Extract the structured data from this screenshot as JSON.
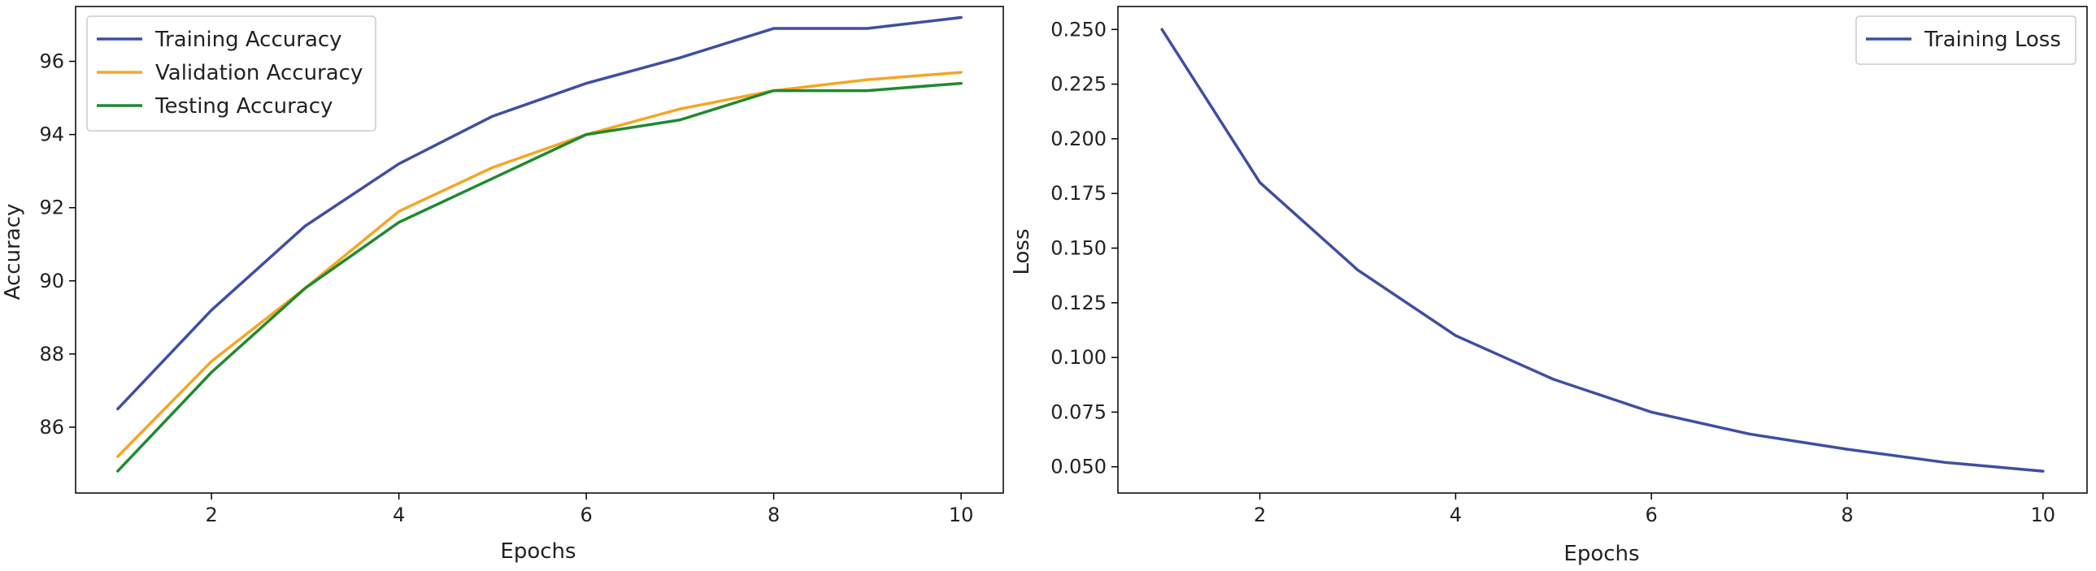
{
  "chart_data": [
    {
      "type": "line",
      "title": "",
      "xlabel": "Epochs",
      "ylabel": "Accuracy",
      "x": [
        1,
        2,
        3,
        4,
        5,
        6,
        7,
        8,
        9,
        10
      ],
      "xlim": [
        0.55,
        10.45
      ],
      "ylim": [
        84.2,
        97.5
      ],
      "xticks": [
        2,
        4,
        6,
        8,
        10
      ],
      "yticks": [
        86,
        88,
        90,
        92,
        94,
        96
      ],
      "legend": "top-left",
      "grid": false,
      "series": [
        {
          "name": "Training Accuracy",
          "color": "#3f4ea3",
          "values": [
            86.5,
            89.2,
            91.5,
            93.2,
            94.5,
            95.4,
            96.1,
            96.9,
            96.9,
            97.2
          ]
        },
        {
          "name": "Validation Accuracy",
          "color": "#f5a623",
          "values": [
            85.2,
            87.8,
            89.8,
            91.9,
            93.1,
            94.0,
            94.7,
            95.2,
            95.5,
            95.7
          ]
        },
        {
          "name": "Testing Accuracy",
          "color": "#1f8a2e",
          "values": [
            84.8,
            87.5,
            89.8,
            91.6,
            92.8,
            94.0,
            94.4,
            95.2,
            95.2,
            95.4
          ]
        }
      ]
    },
    {
      "type": "line",
      "title": "",
      "xlabel": "Epochs",
      "ylabel": "Loss",
      "x": [
        1,
        2,
        3,
        4,
        5,
        6,
        7,
        8,
        9,
        10
      ],
      "xlim": [
        0.55,
        10.45
      ],
      "ylim": [
        0.038,
        0.2605
      ],
      "xticks": [
        2,
        4,
        6,
        8,
        10
      ],
      "yticks": [
        0.05,
        0.075,
        0.1,
        0.125,
        0.15,
        0.175,
        0.2,
        0.225,
        0.25
      ],
      "ytick_labels": [
        "0.050",
        "0.075",
        "0.100",
        "0.125",
        "0.150",
        "0.175",
        "0.200",
        "0.225",
        "0.250"
      ],
      "legend": "top-right",
      "grid": false,
      "series": [
        {
          "name": "Training Loss",
          "color": "#3f4ea3",
          "values": [
            0.25,
            0.18,
            0.14,
            0.11,
            0.09,
            0.075,
            0.065,
            0.058,
            0.052,
            0.048
          ]
        }
      ]
    }
  ]
}
